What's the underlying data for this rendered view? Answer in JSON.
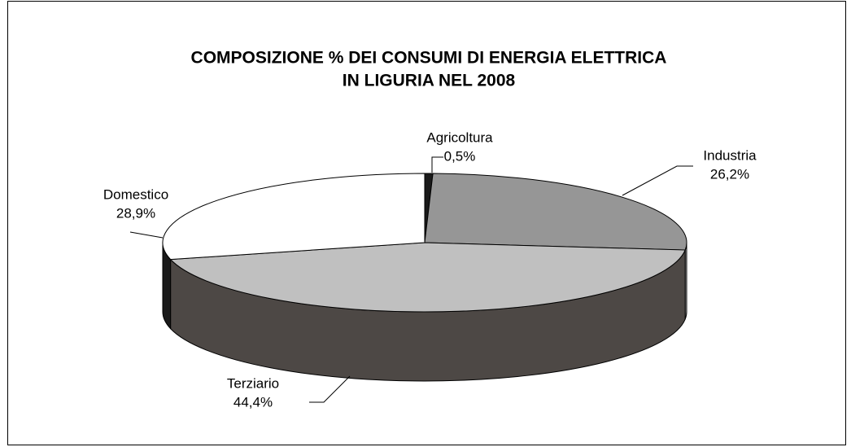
{
  "chart_data": {
    "type": "pie3d",
    "title": [
      "COMPOSIZIONE % DEI CONSUMI DI ENERGIA ELETTRICA",
      "IN LIGURIA NEL 2008"
    ],
    "categories": [
      "Agricoltura",
      "Industria",
      "Terziario",
      "Domestico"
    ],
    "values": [
      0.5,
      26.2,
      44.4,
      28.9
    ],
    "value_labels": [
      "0,5%",
      "26,2%",
      "44,4%",
      "28,9%"
    ],
    "colors": [
      "#1a1a1a",
      "#969696",
      "#c0c0c0",
      "#ffffff"
    ],
    "side_colors": [
      "#111111",
      "#b4b4b4",
      "#4d4845",
      "#1a1a1a"
    ]
  }
}
